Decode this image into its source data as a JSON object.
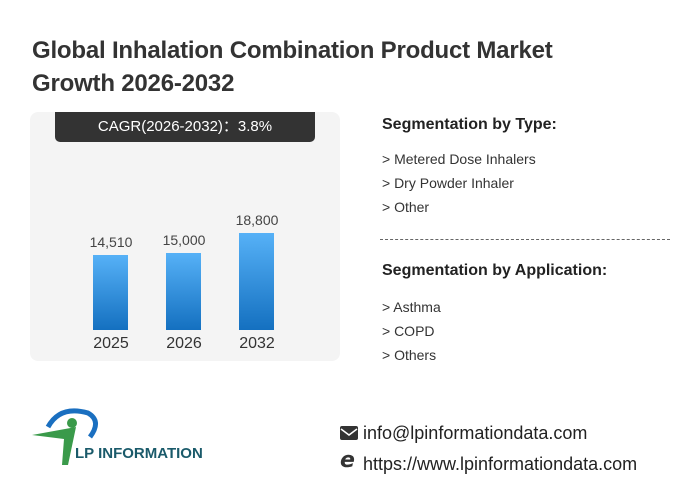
{
  "title": "Global Inhalation Combination Product Market Growth 2026-2032",
  "cagr": "CAGR(2026-2032)：3.8%",
  "chart_data": {
    "type": "bar",
    "title": "Global Inhalation Combination Product Market Growth 2026-2032",
    "categories": [
      "2025",
      "2026",
      "2032"
    ],
    "values": [
      14510,
      15000,
      18800
    ],
    "value_labels": [
      "14,510",
      "15,000",
      "18,800"
    ],
    "xlabel": "",
    "ylabel": "",
    "ylim": [
      0,
      20000
    ],
    "grid": false,
    "bar_color": "#2a8ad8"
  },
  "segmentation_type": {
    "heading": "Segmentation by Type:",
    "items": [
      "> Metered Dose Inhalers",
      "> Dry Powder Inhaler",
      "> Other"
    ]
  },
  "segmentation_application": {
    "heading": "Segmentation by Application:",
    "items": [
      "> Asthma",
      "> COPD",
      "> Others"
    ]
  },
  "logo": {
    "text": "LP INFORMATION"
  },
  "contact": {
    "email": "info@lpinformationdata.com",
    "website": "https://www.lpinformationdata.com"
  }
}
